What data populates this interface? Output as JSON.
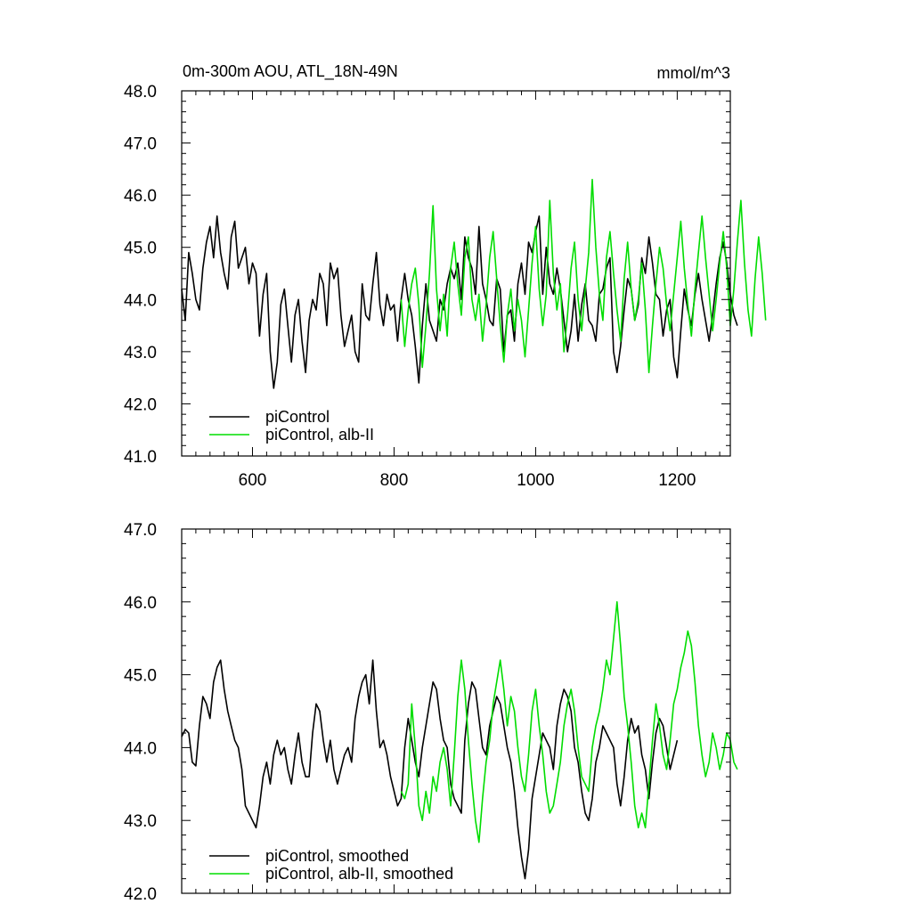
{
  "chart_data": [
    {
      "type": "line",
      "title": "0m-300m AOU, ATL_18N-49N",
      "units": "mmol/m^3",
      "xlim": [
        500,
        1275
      ],
      "ylim": [
        41.0,
        48.0
      ],
      "x_ticks": [
        600,
        800,
        1000,
        1200
      ],
      "x_tick_labels": [
        "600",
        "800",
        "1000",
        "1200"
      ],
      "y_ticks": [
        41.0,
        42.0,
        43.0,
        44.0,
        45.0,
        46.0,
        47.0,
        48.0
      ],
      "y_tick_labels": [
        "41.0",
        "42.0",
        "43.0",
        "44.0",
        "45.0",
        "46.0",
        "47.0",
        "48.0"
      ],
      "legend_position": "bottom-left",
      "series": [
        {
          "name": "piControl",
          "color": "#000000",
          "x_start": 500,
          "x_step": 5,
          "values": [
            44.2,
            43.6,
            44.9,
            44.5,
            44.0,
            43.8,
            44.6,
            45.1,
            45.4,
            44.8,
            45.6,
            44.9,
            44.5,
            44.2,
            45.2,
            45.5,
            44.6,
            44.8,
            45.0,
            44.3,
            44.7,
            44.5,
            43.3,
            44.1,
            44.5,
            43.0,
            42.3,
            42.8,
            43.9,
            44.2,
            43.5,
            42.8,
            43.7,
            44.0,
            43.2,
            42.6,
            43.6,
            44.0,
            43.8,
            44.5,
            44.3,
            43.5,
            44.7,
            44.4,
            44.6,
            43.7,
            43.1,
            43.4,
            43.7,
            43.0,
            42.8,
            44.3,
            43.7,
            43.6,
            44.3,
            44.9,
            43.9,
            43.5,
            44.1,
            43.8,
            43.9,
            43.2,
            44.0,
            44.5,
            44.0,
            43.7,
            43.1,
            42.4,
            43.5,
            44.3,
            43.6,
            43.4,
            43.2,
            44.0,
            43.8,
            44.3,
            44.6,
            44.4,
            44.7,
            44.0,
            45.2,
            44.8,
            44.6,
            44.1,
            45.4,
            44.3,
            44.0,
            43.6,
            43.5,
            44.4,
            44.2,
            43.0,
            43.7,
            43.8,
            43.2,
            44.3,
            44.7,
            44.1,
            45.1,
            44.9,
            45.3,
            45.6,
            44.1,
            45.0,
            44.3,
            44.1,
            44.6,
            44.2,
            43.6,
            43.0,
            43.4,
            44.1,
            43.2,
            43.9,
            44.3,
            43.6,
            43.5,
            43.2,
            44.1,
            44.2,
            44.6,
            44.8,
            43.0,
            42.6,
            43.1,
            43.8,
            44.4,
            44.2,
            43.6,
            43.9,
            44.8,
            44.5,
            45.2,
            44.7,
            44.1,
            44.0,
            43.3,
            43.8,
            44.0,
            42.9,
            42.5,
            43.4,
            44.2,
            43.8,
            43.5,
            44.1,
            44.5,
            44.0,
            43.6,
            43.2,
            43.7,
            44.3,
            44.8,
            45.1,
            44.7,
            44.1,
            43.7,
            43.5
          ]
        },
        {
          "name": "piControl, alb-II",
          "color": "#00dd00",
          "x_start": 810,
          "x_step": 5,
          "values": [
            44.0,
            43.1,
            43.8,
            44.3,
            44.6,
            43.9,
            42.7,
            43.5,
            44.5,
            45.8,
            44.2,
            43.4,
            44.1,
            43.3,
            44.6,
            45.1,
            44.3,
            43.7,
            44.8,
            45.2,
            44.0,
            43.6,
            44.1,
            43.2,
            43.9,
            44.8,
            45.3,
            44.4,
            43.5,
            42.8,
            43.7,
            44.2,
            43.4,
            44.0,
            43.6,
            42.9,
            43.8,
            44.7,
            45.4,
            44.2,
            43.5,
            44.1,
            45.9,
            44.5,
            43.8,
            44.3,
            43.0,
            43.7,
            44.6,
            45.1,
            44.0,
            43.4,
            44.2,
            44.9,
            46.3,
            45.0,
            44.1,
            43.6,
            44.8,
            45.3,
            44.5,
            43.8,
            43.2,
            44.4,
            45.1,
            44.2,
            43.6,
            44.0,
            44.7,
            43.8,
            42.6,
            43.5,
            44.3,
            45.0,
            44.6,
            43.9,
            43.4,
            44.1,
            44.8,
            45.5,
            44.6,
            43.9,
            43.3,
            44.2,
            44.9,
            45.6,
            44.8,
            44.1,
            43.4,
            44.0,
            44.7,
            45.3,
            44.6,
            43.5,
            44.2,
            45.1,
            45.9,
            44.7,
            43.8,
            43.3,
            44.4,
            45.2,
            44.5,
            43.6
          ]
        }
      ]
    },
    {
      "type": "line",
      "xlim": [
        500,
        1275
      ],
      "ylim": [
        42.0,
        47.0
      ],
      "x_ticks": [
        600,
        800,
        1000,
        1200
      ],
      "y_ticks": [
        42.0,
        43.0,
        44.0,
        45.0,
        46.0,
        47.0
      ],
      "y_tick_labels": [
        "42.0",
        "43.0",
        "44.0",
        "45.0",
        "46.0",
        "47.0"
      ],
      "legend_position": "bottom-left",
      "series": [
        {
          "name": "piControl, smoothed",
          "color": "#000000",
          "x_start": 500,
          "x_step": 5,
          "values": [
            44.15,
            44.25,
            44.2,
            43.8,
            43.75,
            44.3,
            44.7,
            44.6,
            44.4,
            44.9,
            45.1,
            45.2,
            44.8,
            44.5,
            44.3,
            44.1,
            44.0,
            43.7,
            43.2,
            43.1,
            43.0,
            42.9,
            43.2,
            43.6,
            43.8,
            43.5,
            43.9,
            44.1,
            43.9,
            44.0,
            43.7,
            43.5,
            43.9,
            44.2,
            43.8,
            43.6,
            43.6,
            44.2,
            44.6,
            44.5,
            44.1,
            43.8,
            44.1,
            43.7,
            43.5,
            43.7,
            43.9,
            44.0,
            43.8,
            44.4,
            44.7,
            44.9,
            45.0,
            44.6,
            45.2,
            44.5,
            44.0,
            44.1,
            43.9,
            43.6,
            43.4,
            43.2,
            43.3,
            44.0,
            44.4,
            44.1,
            43.8,
            43.6,
            44.0,
            44.3,
            44.6,
            44.9,
            44.8,
            44.4,
            44.1,
            44.0,
            43.5,
            43.3,
            43.2,
            43.1,
            44.1,
            44.6,
            44.9,
            44.8,
            44.4,
            44.0,
            43.9,
            44.3,
            44.5,
            44.7,
            44.6,
            44.3,
            44.0,
            43.8,
            43.4,
            42.9,
            42.5,
            42.2,
            42.6,
            43.3,
            43.6,
            43.9,
            44.2,
            44.1,
            44.0,
            43.7,
            44.3,
            44.6,
            44.8,
            44.7,
            44.5,
            44.0,
            43.8,
            43.4,
            43.1,
            43.0,
            43.3,
            43.8,
            44.0,
            44.3,
            44.2,
            44.1,
            44.0,
            43.5,
            43.2,
            43.6,
            44.1,
            44.4,
            44.2,
            44.3,
            43.9,
            43.7,
            43.3,
            43.8,
            44.2,
            44.4,
            44.3,
            44.0,
            43.7,
            43.9,
            44.1
          ]
        },
        {
          "name": "piControl, alb-II, smoothed",
          "color": "#00dd00",
          "x_start": 810,
          "x_step": 5,
          "values": [
            43.4,
            43.3,
            43.5,
            44.6,
            44.0,
            43.2,
            43.0,
            43.4,
            43.1,
            43.6,
            43.4,
            43.8,
            44.0,
            43.7,
            43.2,
            43.9,
            44.7,
            45.2,
            44.8,
            44.1,
            43.5,
            43.0,
            42.7,
            43.3,
            43.8,
            44.1,
            44.6,
            44.9,
            45.2,
            44.8,
            44.3,
            44.7,
            44.5,
            44.0,
            43.6,
            43.4,
            43.9,
            44.5,
            44.8,
            44.3,
            43.9,
            43.4,
            43.1,
            43.2,
            43.5,
            43.8,
            44.3,
            44.6,
            44.8,
            44.5,
            44.0,
            43.6,
            43.5,
            43.4,
            44.0,
            44.3,
            44.5,
            44.8,
            45.2,
            45.0,
            45.5,
            46.0,
            45.4,
            44.7,
            44.3,
            43.8,
            43.2,
            42.9,
            43.1,
            42.9,
            43.5,
            44.1,
            44.6,
            44.3,
            43.9,
            43.7,
            44.1,
            44.6,
            44.8,
            45.1,
            45.3,
            45.6,
            45.4,
            44.9,
            44.3,
            43.9,
            43.6,
            43.8,
            44.2,
            44.0,
            43.7,
            43.9,
            44.2,
            44.1,
            43.8,
            43.7
          ]
        }
      ]
    }
  ]
}
